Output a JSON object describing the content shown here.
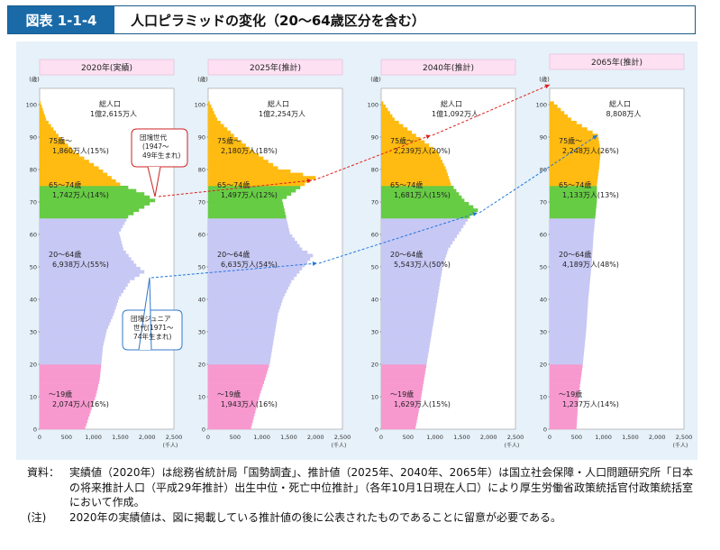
{
  "header": {
    "badge": "図表 1-1-4",
    "title": "人口ピラミッドの変化（20～64歳区分を含む）"
  },
  "axis": {
    "y_unit": "(歳)",
    "x_unit": "(千人)",
    "y_ticks": [
      "0",
      "10",
      "20",
      "30",
      "40",
      "50",
      "60",
      "70",
      "80",
      "90",
      "100"
    ],
    "x_ticks": [
      "0",
      "500",
      "1,000",
      "1,500",
      "2,000",
      "2,500"
    ]
  },
  "colors": {
    "age0_19": "#f799cf",
    "age20_64": "#c8c8f5",
    "age65_74": "#66cc44",
    "age75": "#ffbb11",
    "title_box": "#fde0f2",
    "panel": "#e6f1f9"
  },
  "chart_data": [
    {
      "type": "bar",
      "title": "2020年(実績)",
      "total_label": "総人口",
      "total": "1億2,615万人",
      "groups": [
        {
          "label": "～19歳",
          "value": "2,074万人(16%)"
        },
        {
          "label": "20～64歳",
          "value": "6,938万人(55%)"
        },
        {
          "label": "65～74歳",
          "value": "1,742万人(14%)"
        },
        {
          "label": "75歳～",
          "value": "1,860万人(15%)"
        }
      ],
      "callouts": [
        {
          "text": "団塊世代\n(1947～\n49年生まれ)",
          "color": "#cc2222"
        },
        {
          "text": "団塊ジュニア\n世代(1971～\n74年生まれ)",
          "color": "#3377cc"
        }
      ],
      "age_profile": {
        "ages": [
          0,
          5,
          10,
          15,
          20,
          25,
          30,
          35,
          40,
          45,
          48,
          50,
          55,
          60,
          65,
          70,
          72,
          75,
          80,
          85,
          90,
          95,
          100
        ],
        "values": [
          850,
          950,
          1050,
          1120,
          1150,
          1180,
          1250,
          1380,
          1480,
          1680,
          1950,
          1800,
          1560,
          1480,
          1650,
          2150,
          1950,
          1500,
          1100,
          650,
          350,
          120,
          20
        ]
      }
    },
    {
      "type": "bar",
      "title": "2025年(推計)",
      "total_label": "総人口",
      "total": "1億2,254万人",
      "groups": [
        {
          "label": "～19歳",
          "value": "1,943万人(16%)"
        },
        {
          "label": "20～64歳",
          "value": "6,635万人(54%)"
        },
        {
          "label": "65～74歳",
          "value": "1,497万人(12%)"
        },
        {
          "label": "75歳～",
          "value": "2,180万人(18%)"
        }
      ],
      "age_profile": {
        "ages": [
          0,
          5,
          10,
          15,
          20,
          25,
          30,
          35,
          40,
          45,
          50,
          53,
          55,
          60,
          65,
          70,
          75,
          77,
          80,
          85,
          90,
          95,
          100
        ],
        "values": [
          800,
          880,
          960,
          1060,
          1150,
          1200,
          1250,
          1300,
          1400,
          1550,
          1800,
          1950,
          1750,
          1520,
          1450,
          1380,
          1800,
          2000,
          1300,
          850,
          480,
          170,
          30
        ]
      }
    },
    {
      "type": "bar",
      "title": "2040年(推計)",
      "total_label": "総人口",
      "total": "1億1,092万人",
      "groups": [
        {
          "label": "～19歳",
          "value": "1,629万人(15%)"
        },
        {
          "label": "20～64歳",
          "value": "5,543万人(50%)"
        },
        {
          "label": "65～74歳",
          "value": "1,681万人(15%)"
        },
        {
          "label": "75歳～",
          "value": "2,239万人(20%)"
        }
      ],
      "age_profile": {
        "ages": [
          0,
          5,
          10,
          15,
          20,
          25,
          30,
          35,
          40,
          45,
          50,
          55,
          60,
          65,
          67,
          70,
          75,
          80,
          85,
          90,
          95,
          100
        ],
        "values": [
          640,
          700,
          750,
          800,
          850,
          900,
          950,
          1000,
          1050,
          1100,
          1150,
          1250,
          1450,
          1650,
          1800,
          1550,
          1300,
          1200,
          1050,
          650,
          250,
          40
        ]
      }
    },
    {
      "type": "bar",
      "title": "2065年(推計)",
      "total_label": "総人口",
      "total": "8,808万人",
      "groups": [
        {
          "label": "～19歳",
          "value": "1,237万人(14%)"
        },
        {
          "label": "20～64歳",
          "value": "4,189万人(48%)"
        },
        {
          "label": "65～74歳",
          "value": "1,133万人(13%)"
        },
        {
          "label": "75歳～",
          "value": "2,248万人(26%)"
        }
      ],
      "age_profile": {
        "ages": [
          0,
          5,
          10,
          15,
          20,
          25,
          30,
          35,
          40,
          45,
          50,
          55,
          60,
          65,
          70,
          75,
          80,
          85,
          90,
          95,
          100
        ],
        "values": [
          500,
          520,
          540,
          580,
          620,
          650,
          680,
          700,
          720,
          750,
          780,
          800,
          820,
          850,
          880,
          880,
          920,
          950,
          900,
          400,
          80
        ]
      }
    }
  ],
  "source": {
    "label1": "資料：",
    "text1": "実績値（2020年）は総務省統計局「国勢調査」、推計値（2025年、2040年、2065年）は国立社会保障・人口問題研究所「日本の将来推計人口（平成29年推計）出生中位・死亡中位推計」（各年10月1日現在人口）により厚生労働省政策統括官付政策統括室において作成。",
    "label2": "(注)",
    "text2": "2020年の実績値は、図に掲載している推計値の後に公表されたものであることに留意が必要である。"
  }
}
